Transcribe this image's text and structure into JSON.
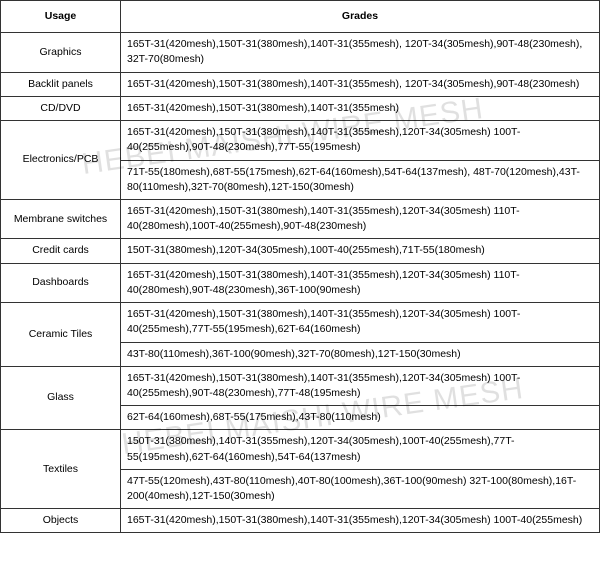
{
  "watermark": "HEBEI MAISHI WIRE MESH",
  "headers": {
    "usage": "Usage",
    "grades": "Grades"
  },
  "rows": [
    {
      "usage": "Graphics",
      "grades": [
        "165T-31(420mesh),150T-31(380mesh),140T-31(355mesh), 120T-34(305mesh),90T-48(230mesh), 32T-70(80mesh)"
      ],
      "rowspan": 1
    },
    {
      "usage": "Backlit panels",
      "grades": [
        "165T-31(420mesh),150T-31(380mesh),140T-31(355mesh), 120T-34(305mesh),90T-48(230mesh)"
      ],
      "rowspan": 1
    },
    {
      "usage": "CD/DVD",
      "grades": [
        "165T-31(420mesh),150T-31(380mesh),140T-31(355mesh)"
      ],
      "rowspan": 1
    },
    {
      "usage": "Electronics/PCB",
      "grades": [
        "165T-31(420mesh),150T-31(380mesh),140T-31(355mesh),120T-34(305mesh) 100T-40(255mesh),90T-48(230mesh),77T-55(195mesh)",
        "71T-55(180mesh),68T-55(175mesh),62T-64(160mesh),54T-64(137mesh), 48T-70(120mesh),43T-80(110mesh),32T-70(80mesh),12T-150(30mesh)"
      ],
      "rowspan": 2
    },
    {
      "usage": "Membrane switches",
      "grades": [
        "165T-31(420mesh),150T-31(380mesh),140T-31(355mesh),120T-34(305mesh) 110T-40(280mesh),100T-40(255mesh),90T-48(230mesh)"
      ],
      "rowspan": 1
    },
    {
      "usage": "Credit cards",
      "grades": [
        "150T-31(380mesh),120T-34(305mesh),100T-40(255mesh),71T-55(180mesh)"
      ],
      "rowspan": 1
    },
    {
      "usage": "Dashboards",
      "grades": [
        "165T-31(420mesh),150T-31(380mesh),140T-31(355mesh),120T-34(305mesh) 110T-40(280mesh),90T-48(230mesh),36T-100(90mesh)"
      ],
      "rowspan": 1
    },
    {
      "usage": "Ceramic Tiles",
      "grades": [
        "165T-31(420mesh),150T-31(380mesh),140T-31(355mesh),120T-34(305mesh) 100T-40(255mesh),77T-55(195mesh),62T-64(160mesh)",
        "43T-80(110mesh),36T-100(90mesh),32T-70(80mesh),12T-150(30mesh)"
      ],
      "rowspan": 2
    },
    {
      "usage": "Glass",
      "grades": [
        "165T-31(420mesh),150T-31(380mesh),140T-31(355mesh),120T-34(305mesh) 100T-40(255mesh),90T-48(230mesh),77T-48(195mesh)",
        "62T-64(160mesh),68T-55(175mesh),43T-80(110mesh)"
      ],
      "rowspan": 2
    },
    {
      "usage": "Textiles",
      "grades": [
        "150T-31(380mesh),140T-31(355mesh),120T-34(305mesh),100T-40(255mesh),77T-55(195mesh),62T-64(160mesh),54T-64(137mesh)",
        "47T-55(120mesh),43T-80(110mesh),40T-80(100mesh),36T-100(90mesh) 32T-100(80mesh),16T-200(40mesh),12T-150(30mesh)"
      ],
      "rowspan": 2
    },
    {
      "usage": "Objects",
      "grades": [
        "165T-31(420mesh),150T-31(380mesh),140T-31(355mesh),120T-34(305mesh) 100T-40(255mesh)"
      ],
      "rowspan": 1
    }
  ]
}
